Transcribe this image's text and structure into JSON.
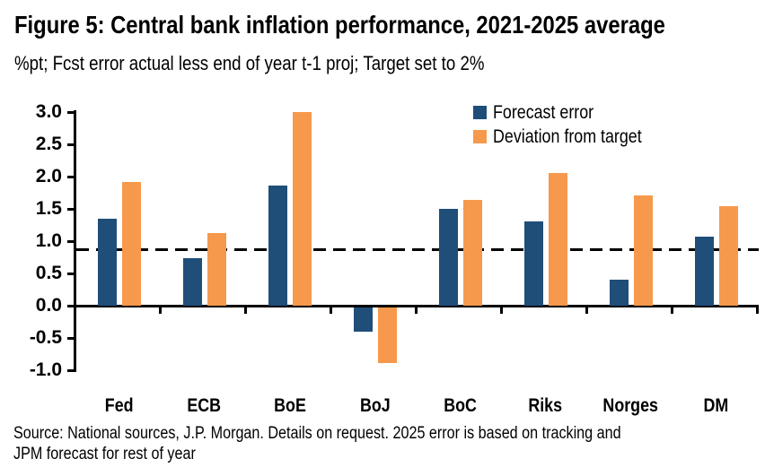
{
  "header": {
    "figure_label": "Figure 5"
  },
  "chart_data": {
    "type": "bar",
    "title": "Figure 5: Central bank inflation performance, 2021-2025 average",
    "subtitle": "%pt; Fcst error actual less end of year t-1 proj; Target set to 2%",
    "categories": [
      "Fed",
      "ECB",
      "BoE",
      "BoJ",
      "BoC",
      "Riks",
      "Norges",
      "DM"
    ],
    "series": [
      {
        "name": "Forecast error",
        "color": "#1f4e79",
        "values": [
          1.35,
          0.73,
          1.86,
          -0.38,
          1.5,
          1.31,
          0.4,
          1.07
        ]
      },
      {
        "name": "Deviation from target",
        "color": "#f6994c",
        "values": [
          1.92,
          1.12,
          3.0,
          -0.87,
          1.64,
          2.05,
          1.71,
          1.54
        ]
      }
    ],
    "ylim": [
      -1.0,
      3.0
    ],
    "ytick_step": 0.5,
    "ytick_labels": [
      "3.0",
      "2.5",
      "2.0",
      "1.5",
      "1.0",
      "0.5",
      "0.0",
      "-0.5",
      "-1.0"
    ],
    "dashed_line_value": 0.87,
    "dashed_line_color": "#000000",
    "axis_color": "#000000",
    "legend_position": "top-right",
    "grid": false,
    "xlabel": "",
    "ylabel": ""
  },
  "source": {
    "line1": "Source: National sources, J.P. Morgan. Details on request. 2025 error is based on tracking and",
    "line2": "JPM forecast for rest of year"
  }
}
